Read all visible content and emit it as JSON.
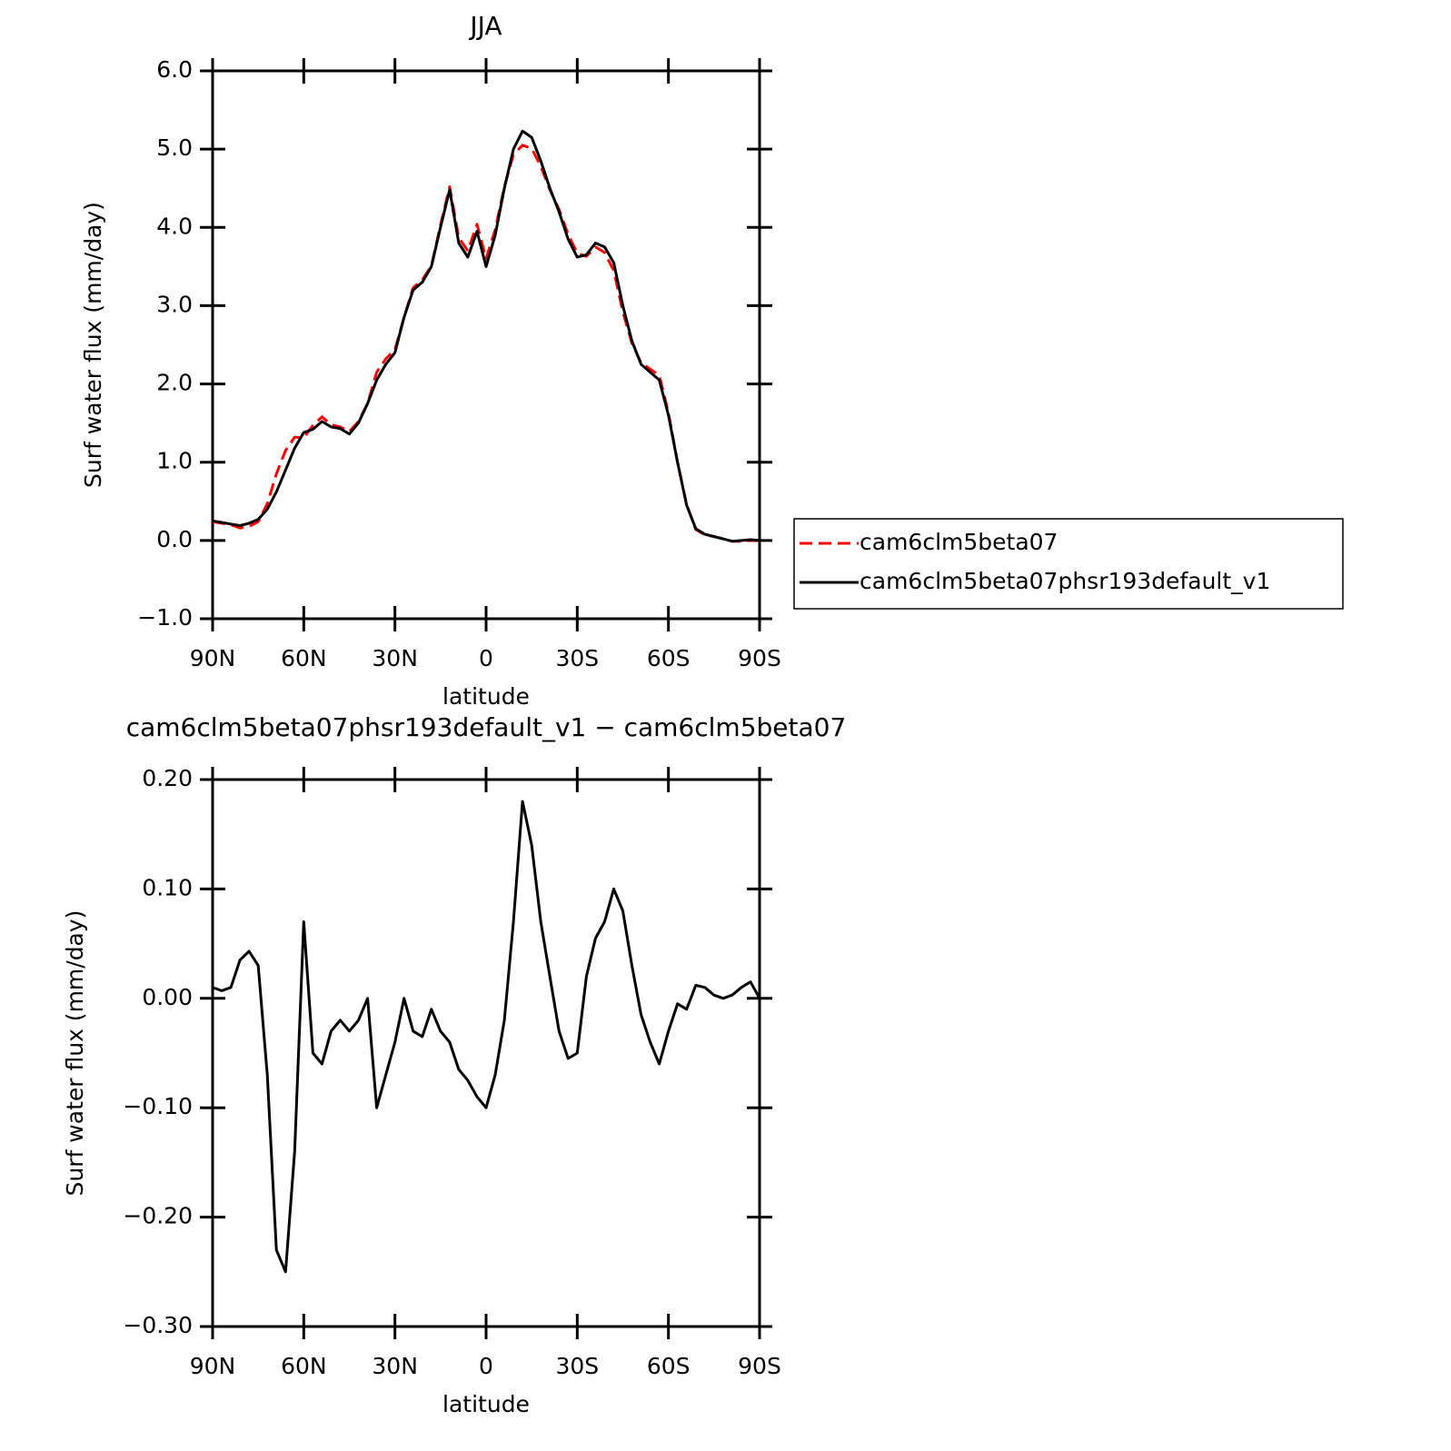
{
  "chart_data": [
    {
      "type": "line",
      "title": "JJA",
      "xlabel": "latitude",
      "ylabel": "Surf water flux (mm/day)",
      "x": [
        90,
        87,
        84,
        81,
        78,
        75,
        72,
        69,
        66,
        63,
        60,
        57,
        54,
        51,
        48,
        45,
        42,
        39,
        36,
        33,
        30,
        27,
        24,
        21,
        18,
        15,
        12,
        9,
        6,
        3,
        0,
        -3,
        -6,
        -9,
        -12,
        -15,
        -18,
        -21,
        -24,
        -27,
        -30,
        -33,
        -36,
        -39,
        -42,
        -45,
        -48,
        -51,
        -54,
        -57,
        -60,
        -63,
        -66,
        -69,
        -72,
        -75,
        -78,
        -81,
        -84,
        -87,
        -90
      ],
      "series": [
        {
          "name": "cam6clm5beta07",
          "color": "#ff0000",
          "style": "dashed",
          "values": [
            0.24,
            0.22,
            0.2,
            0.16,
            0.18,
            0.24,
            0.47,
            0.85,
            1.15,
            1.32,
            1.31,
            1.47,
            1.58,
            1.48,
            1.45,
            1.39,
            1.52,
            1.75,
            2.15,
            2.32,
            2.44,
            2.85,
            3.23,
            3.33,
            3.51,
            4.03,
            4.52,
            3.87,
            3.7,
            4.04,
            3.6,
            3.97,
            4.52,
            4.93,
            5.05,
            5.01,
            4.78,
            4.48,
            4.23,
            3.91,
            3.67,
            3.63,
            3.75,
            3.68,
            3.45,
            2.92,
            2.52,
            2.27,
            2.19,
            2.11,
            1.63,
            1.0,
            0.46,
            0.14,
            0.07,
            0.05,
            0.02,
            -0.01,
            -0.01,
            0.0,
            0.0
          ]
        },
        {
          "name": "cam6clm5beta07phsr193default_v1",
          "color": "#000000",
          "style": "solid",
          "values": [
            0.25,
            0.23,
            0.21,
            0.19,
            0.22,
            0.27,
            0.4,
            0.62,
            0.9,
            1.18,
            1.38,
            1.42,
            1.52,
            1.45,
            1.43,
            1.36,
            1.5,
            1.75,
            2.05,
            2.25,
            2.4,
            2.85,
            3.2,
            3.3,
            3.5,
            4.0,
            4.48,
            3.8,
            3.62,
            3.95,
            3.5,
            3.9,
            4.5,
            5.0,
            5.23,
            5.15,
            4.85,
            4.5,
            4.2,
            3.85,
            3.62,
            3.65,
            3.8,
            3.75,
            3.55,
            3.0,
            2.55,
            2.25,
            2.15,
            2.05,
            1.6,
            1.0,
            0.45,
            0.15,
            0.08,
            0.05,
            0.02,
            -0.01,
            0.0,
            0.01,
            0.0
          ]
        }
      ],
      "xlim": [
        90,
        -90
      ],
      "xticks": [
        {
          "value": 90,
          "label": "90N"
        },
        {
          "value": 60,
          "label": "60N"
        },
        {
          "value": 30,
          "label": "30N"
        },
        0,
        {
          "value": -30,
          "label": "30S"
        },
        {
          "value": -60,
          "label": "60S"
        },
        {
          "value": -90,
          "label": "90S"
        }
      ],
      "ylim": [
        -1.0,
        6.0
      ],
      "yticks": [
        {
          "value": -1,
          "label": "−1.0"
        },
        {
          "value": 0,
          "label": "0.0"
        },
        {
          "value": 1,
          "label": "1.0"
        },
        {
          "value": 2,
          "label": "2.0"
        },
        {
          "value": 3,
          "label": "3.0"
        },
        {
          "value": 4,
          "label": "4.0"
        },
        {
          "value": 5,
          "label": "5.0"
        },
        {
          "value": 6,
          "label": "6.0"
        }
      ],
      "legend": "right"
    },
    {
      "type": "line",
      "title": "cam6clm5beta07phsr193default_v1 − cam6clm5beta07",
      "xlabel": "latitude",
      "ylabel": "Surf water flux (mm/day)",
      "x": [
        90,
        87,
        84,
        81,
        78,
        75,
        72,
        69,
        66,
        63,
        60,
        57,
        54,
        51,
        48,
        45,
        42,
        39,
        36,
        33,
        30,
        27,
        24,
        21,
        18,
        15,
        12,
        9,
        6,
        3,
        0,
        -3,
        -6,
        -9,
        -12,
        -15,
        -18,
        -21,
        -24,
        -27,
        -30,
        -33,
        -36,
        -39,
        -42,
        -45,
        -48,
        -51,
        -54,
        -57,
        -60,
        -63,
        -66,
        -69,
        -72,
        -75,
        -78,
        -81,
        -84,
        -87,
        -90
      ],
      "series": [
        {
          "color": "#000000",
          "style": "solid",
          "values": [
            0.01,
            0.007,
            0.01,
            0.035,
            0.043,
            0.03,
            -0.07,
            -0.23,
            -0.25,
            -0.14,
            0.07,
            -0.05,
            -0.06,
            -0.03,
            -0.02,
            -0.03,
            -0.02,
            0.0,
            -0.1,
            -0.07,
            -0.04,
            0.0,
            -0.03,
            -0.035,
            -0.01,
            -0.03,
            -0.04,
            -0.065,
            -0.075,
            -0.09,
            -0.1,
            -0.07,
            -0.02,
            0.07,
            0.18,
            0.14,
            0.07,
            0.02,
            -0.03,
            -0.055,
            -0.05,
            0.02,
            0.055,
            0.07,
            0.1,
            0.08,
            0.03,
            -0.015,
            -0.04,
            -0.06,
            -0.03,
            -0.005,
            -0.01,
            0.012,
            0.01,
            0.003,
            0.0,
            0.003,
            0.01,
            0.015,
            0.0
          ]
        }
      ],
      "xlim": [
        90,
        -90
      ],
      "xticks": [
        {
          "value": 90,
          "label": "90N"
        },
        {
          "value": 60,
          "label": "60N"
        },
        {
          "value": 30,
          "label": "30N"
        },
        0,
        {
          "value": -30,
          "label": "30S"
        },
        {
          "value": -60,
          "label": "60S"
        },
        {
          "value": -90,
          "label": "90S"
        }
      ],
      "ylim": [
        -0.3,
        0.2
      ],
      "yticks": [
        {
          "value": -0.3,
          "label": "−0.30"
        },
        {
          "value": -0.2,
          "label": "−0.20"
        },
        {
          "value": -0.1,
          "label": "−0.10"
        },
        {
          "value": 0,
          "label": "0.00"
        },
        {
          "value": 0.1,
          "label": "0.10"
        },
        {
          "value": 0.2,
          "label": "0.20"
        }
      ]
    }
  ]
}
